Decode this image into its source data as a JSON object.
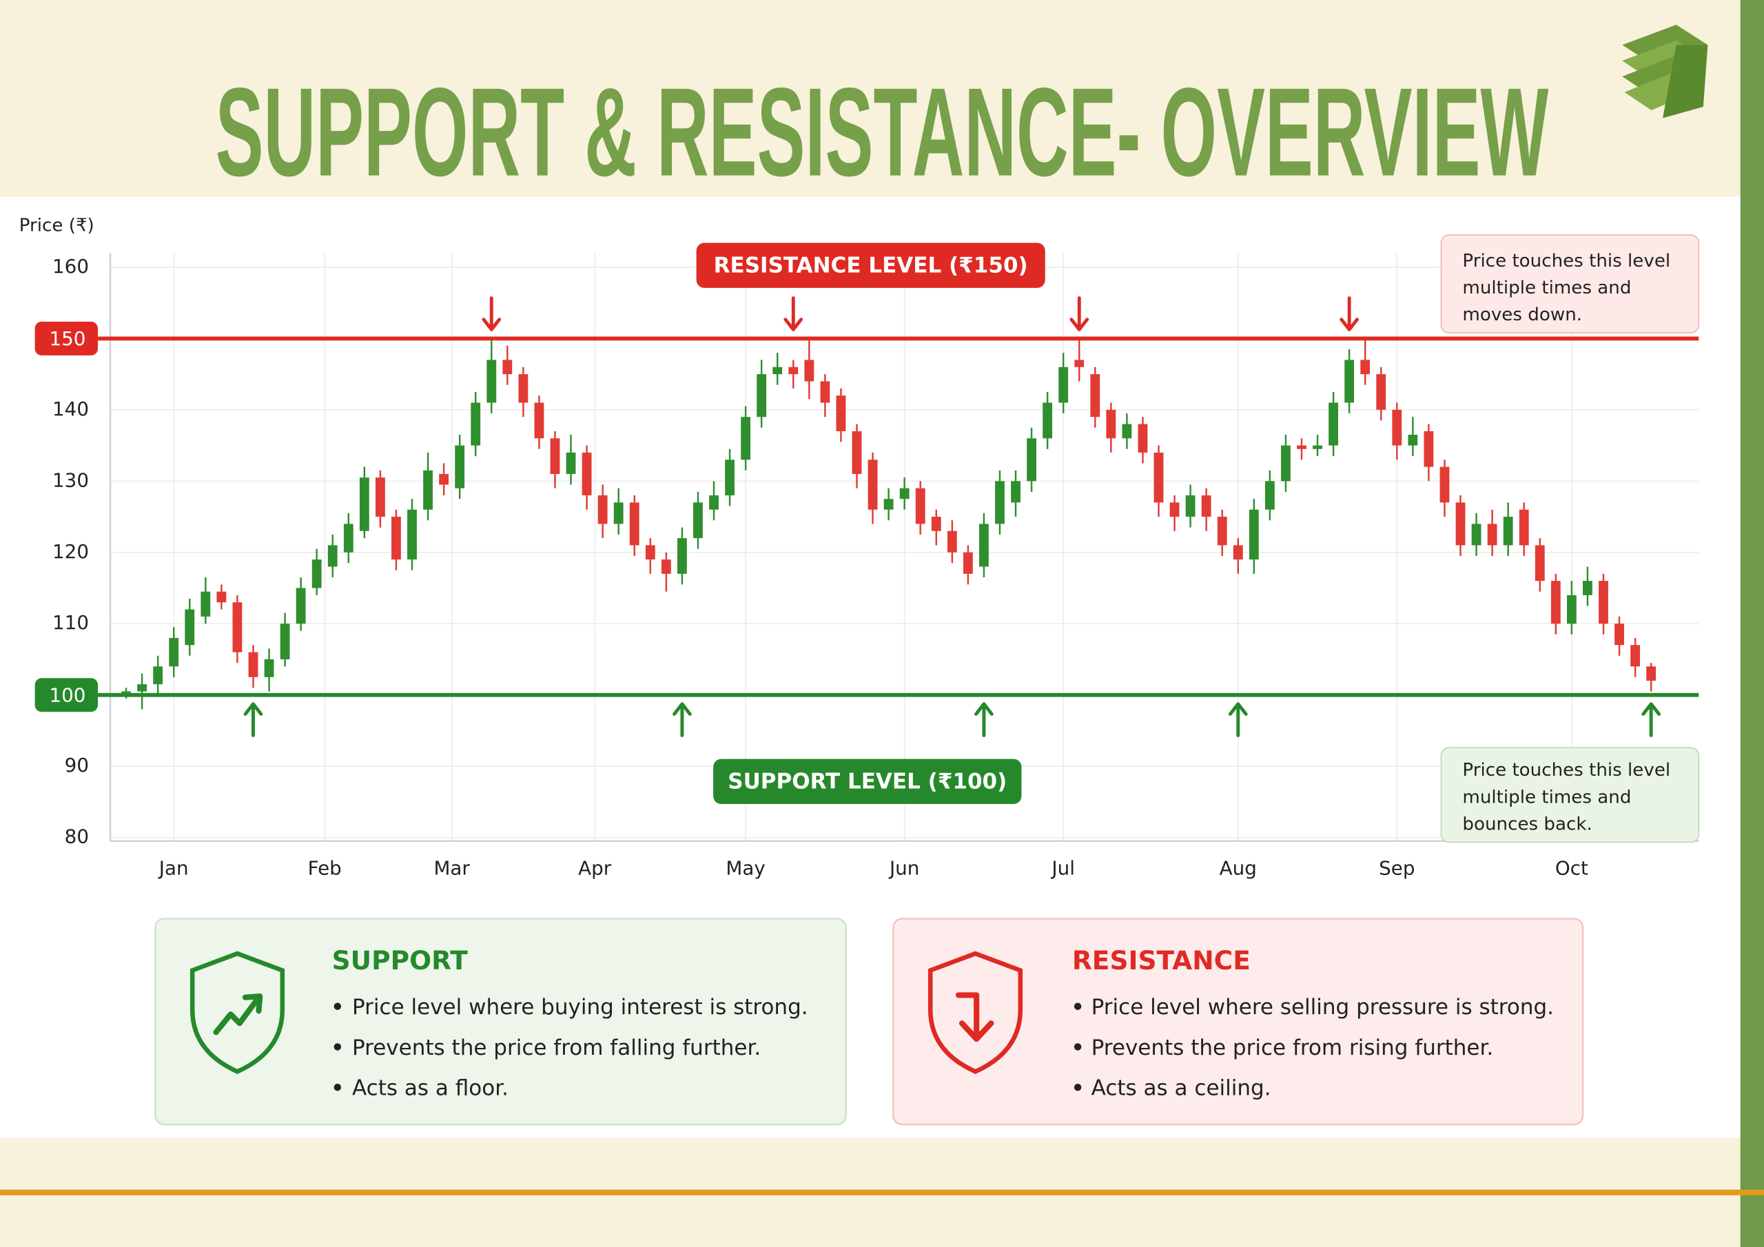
{
  "header": {
    "title": "SUPPORT & RESISTANCE- OVERVIEW"
  },
  "chart_data": {
    "type": "candlestick",
    "y_label": "Price (₹)",
    "open": [
      100,
      100.5,
      101.5,
      104,
      107,
      111,
      114.5,
      113,
      106,
      102.5,
      105,
      110,
      115,
      118,
      120,
      123,
      130.5,
      125,
      119,
      126,
      131,
      129,
      135,
      141,
      147,
      145,
      141,
      136,
      131,
      134,
      128,
      124,
      127,
      121,
      119,
      117,
      122,
      126,
      128,
      133,
      139,
      145,
      146,
      147,
      144,
      142,
      137,
      133,
      126,
      127.5,
      129,
      125,
      123,
      120,
      118,
      124,
      127,
      130,
      136,
      141,
      147,
      145,
      140,
      136,
      138,
      134,
      127,
      125,
      128,
      125,
      121,
      119,
      126,
      130,
      135,
      134.5,
      135,
      141,
      147,
      145,
      140,
      135,
      137,
      132,
      127,
      121,
      124,
      121,
      126,
      121,
      116,
      110,
      114,
      116,
      110,
      107,
      104
    ],
    "high": [
      101,
      103,
      105.5,
      109.5,
      113.5,
      116.5,
      115.5,
      114,
      107,
      106.5,
      111.5,
      116.5,
      120.5,
      122.5,
      125.5,
      132,
      131.5,
      126,
      127.5,
      134,
      132.5,
      136.5,
      142.5,
      150,
      149,
      146,
      142,
      137,
      136.5,
      135,
      129.5,
      129,
      128,
      122,
      120,
      123.5,
      128.5,
      130,
      134.5,
      140.5,
      147,
      148,
      147,
      150,
      145,
      143,
      138,
      134,
      129,
      130.5,
      130,
      126,
      124.5,
      121,
      125.5,
      131.5,
      131.5,
      137.5,
      142.5,
      148,
      150,
      146,
      141,
      139.5,
      139,
      135,
      128,
      129.5,
      129,
      126,
      122,
      127.5,
      131.5,
      136.5,
      136,
      136.5,
      142.5,
      148.5,
      150,
      146,
      141,
      139,
      138,
      133,
      128,
      125.5,
      126,
      127,
      127,
      122,
      117,
      116,
      118,
      117,
      111,
      108,
      104.5
    ],
    "low": [
      99.5,
      98,
      100,
      102.5,
      105.5,
      110,
      112,
      104.5,
      101,
      100.5,
      104,
      109,
      114,
      116.5,
      118.5,
      122,
      123.5,
      117.5,
      117.5,
      124.5,
      128,
      127.5,
      133.5,
      139.5,
      143.5,
      139,
      134.5,
      129,
      129.5,
      126,
      122,
      122.5,
      119.5,
      117,
      114.5,
      115.5,
      120.5,
      124.5,
      126.5,
      131.5,
      137.5,
      143.5,
      143,
      141.5,
      139,
      135.5,
      129,
      124,
      124.5,
      126,
      122.5,
      121,
      118.5,
      115.5,
      116.5,
      122.5,
      125,
      128.5,
      134.5,
      139.5,
      144,
      137.5,
      134,
      134.5,
      132.5,
      125,
      123,
      123.5,
      123,
      119.5,
      117,
      117,
      124.5,
      128.5,
      133,
      133.5,
      133.5,
      139.5,
      143.5,
      138.5,
      133,
      133.5,
      130,
      125,
      119.5,
      119.5,
      119.5,
      119.5,
      119.5,
      114.5,
      108.5,
      108.5,
      112.5,
      108.5,
      105.5,
      102.5,
      100.5
    ],
    "close": [
      100.5,
      101.5,
      104,
      108,
      112,
      114.5,
      113,
      106,
      102.5,
      105,
      110,
      115,
      119,
      121,
      124,
      130.5,
      125,
      119,
      126,
      131.5,
      129.5,
      135,
      141,
      147,
      145,
      141,
      136,
      131,
      134,
      128,
      124,
      127,
      121,
      119,
      117,
      122,
      127,
      128,
      133,
      139,
      145,
      146,
      145,
      144,
      141,
      137,
      131,
      126,
      127.5,
      129,
      124,
      123,
      120,
      117,
      124,
      130,
      130,
      136,
      141,
      146,
      146,
      139,
      136,
      138,
      134,
      127,
      125,
      128,
      125,
      121,
      119,
      126,
      130,
      135,
      134.5,
      135,
      141,
      147,
      145,
      140,
      135,
      136.5,
      132,
      127,
      121,
      124,
      121,
      125,
      121,
      116,
      110,
      114,
      116,
      110,
      107,
      104,
      102
    ],
    "up_color": "#2f8f2f",
    "down_color": "#e23b35",
    "xlim": [
      -1,
      99
    ],
    "xticks": [
      {
        "value": 3,
        "label": "Jan"
      },
      {
        "value": 12.5,
        "label": "Feb"
      },
      {
        "value": 20.5,
        "label": "Mar"
      },
      {
        "value": 29.5,
        "label": "Apr"
      },
      {
        "value": 39,
        "label": "May"
      },
      {
        "value": 49,
        "label": "Jun"
      },
      {
        "value": 59,
        "label": "Jul"
      },
      {
        "value": 70,
        "label": "Aug"
      },
      {
        "value": 80,
        "label": "Sep"
      },
      {
        "value": 91,
        "label": "Oct"
      }
    ],
    "ylim": [
      79.5,
      162
    ],
    "yticks": [
      80,
      90,
      100,
      110,
      120,
      130,
      140,
      150,
      160
    ],
    "grid": true,
    "resistance": {
      "value": 150,
      "label": "RESISTANCE LEVEL (₹150)",
      "color": "#df2a24",
      "touches": [
        23,
        42,
        60,
        77
      ],
      "note": [
        "Price touches this level",
        "multiple times and",
        "moves down."
      ]
    },
    "support": {
      "value": 100,
      "label": "SUPPORT LEVEL (₹100)",
      "color": "#25892b",
      "touches": [
        8,
        35,
        54,
        70,
        96
      ],
      "note": [
        "Price touches this level",
        "multiple times and",
        "bounces back."
      ]
    }
  },
  "cards": [
    {
      "title": "SUPPORT",
      "bullets": [
        "Price level where buying interest is strong.",
        "Prevents the price from falling further.",
        "Acts as a floor."
      ]
    },
    {
      "title": "RESISTANCE",
      "bullets": [
        "Price level where selling pressure is strong.",
        "Prevents the price from rising further.",
        "Acts as a ceiling."
      ]
    }
  ]
}
